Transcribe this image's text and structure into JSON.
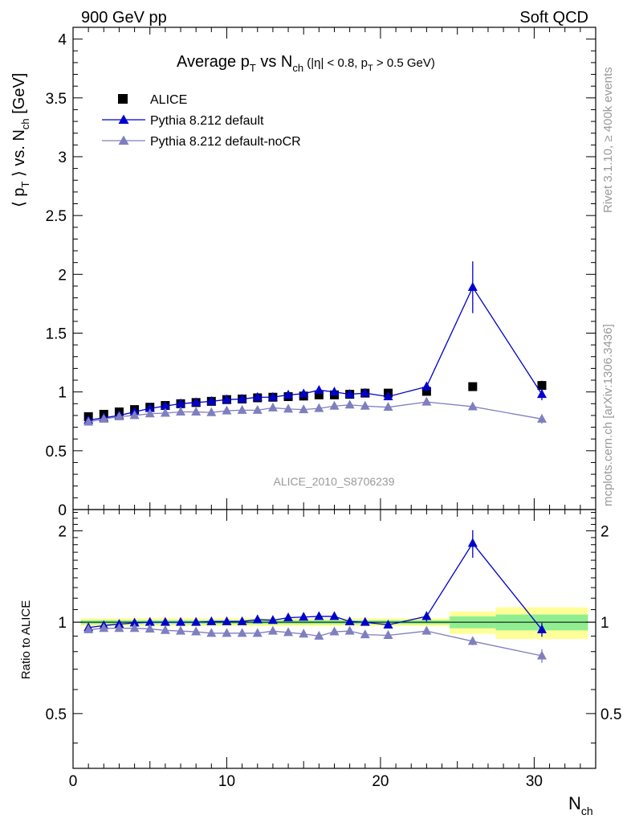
{
  "header": {
    "left": "900 GeV pp",
    "right": "Soft QCD"
  },
  "side_labels": {
    "rivet": "Rivet 3.1.10, ≥ 400k events",
    "mcplots": "mcplots.cern.ch [arXiv:1306.3436]"
  },
  "chart_data": [
    {
      "type": "scatter",
      "panel": "main",
      "title_parts": {
        "prefix": "Average p",
        "sub1": "T",
        "mid": " vs N",
        "sub2": "ch",
        "cut_a": " (|η| < 0.8, p",
        "cut_sub": "T",
        "cut_b": " > 0.5 GeV)"
      },
      "ylabel_parts": {
        "open": "⟨ p",
        "sub1": "T",
        "close": " ⟩ vs. N",
        "sub2": "ch",
        "unit": " [GeV]"
      },
      "xlim": [
        0,
        34
      ],
      "ylim": [
        0,
        4.1
      ],
      "yticks": [
        "0",
        "0.5",
        "1",
        "1.5",
        "2",
        "2.5",
        "3",
        "3.5",
        "4"
      ],
      "legend_position": "top-left",
      "watermark": "ALICE_2010_S8706239",
      "series": [
        {
          "name": "ALICE",
          "marker": "square",
          "color": "#000000",
          "x": [
            1,
            2,
            3,
            4,
            5,
            6,
            7,
            8,
            9,
            10,
            11,
            12,
            13,
            14,
            15,
            16,
            17,
            18,
            19,
            20.5,
            23,
            26,
            30.5
          ],
          "y": [
            0.79,
            0.81,
            0.83,
            0.85,
            0.87,
            0.885,
            0.9,
            0.91,
            0.92,
            0.935,
            0.94,
            0.95,
            0.955,
            0.96,
            0.965,
            0.975,
            0.975,
            0.98,
            0.99,
            0.99,
            1.005,
            1.045,
            1.055
          ],
          "err": [
            0.01,
            0.01,
            0.01,
            0.01,
            0.01,
            0.01,
            0.01,
            0.01,
            0.01,
            0.01,
            0.01,
            0.01,
            0.01,
            0.01,
            0.01,
            0.01,
            0.01,
            0.01,
            0.01,
            0.01,
            0.02,
            0.03,
            0.04
          ]
        },
        {
          "name": "Pythia 8.212 default",
          "marker": "triangle",
          "color": "#0000cc",
          "x": [
            1,
            2,
            3,
            4,
            5,
            6,
            7,
            8,
            9,
            10,
            11,
            12,
            13,
            14,
            15,
            16,
            17,
            18,
            19,
            20.5,
            23,
            26,
            30.5
          ],
          "y": [
            0.76,
            0.78,
            0.8,
            0.83,
            0.86,
            0.88,
            0.9,
            0.91,
            0.92,
            0.935,
            0.94,
            0.955,
            0.955,
            0.975,
            0.985,
            1.015,
            1.0,
            0.98,
            0.99,
            0.96,
            1.045,
            1.89,
            0.98
          ],
          "err": [
            0.01,
            0.01,
            0.01,
            0.01,
            0.01,
            0.01,
            0.01,
            0.01,
            0.01,
            0.01,
            0.01,
            0.01,
            0.01,
            0.01,
            0.015,
            0.015,
            0.015,
            0.015,
            0.015,
            0.02,
            0.04,
            0.22,
            0.05
          ]
        },
        {
          "name": "Pythia 8.212 default-noCR",
          "marker": "triangle",
          "color": "#7f7fbf",
          "x": [
            1,
            2,
            3,
            4,
            5,
            6,
            7,
            8,
            9,
            10,
            11,
            12,
            13,
            14,
            15,
            16,
            17,
            18,
            19,
            20.5,
            23,
            26,
            30.5
          ],
          "y": [
            0.745,
            0.77,
            0.79,
            0.8,
            0.815,
            0.82,
            0.83,
            0.83,
            0.825,
            0.84,
            0.845,
            0.845,
            0.865,
            0.855,
            0.85,
            0.86,
            0.88,
            0.89,
            0.88,
            0.87,
            0.915,
            0.875,
            0.77
          ],
          "err": [
            0.01,
            0.01,
            0.01,
            0.01,
            0.01,
            0.01,
            0.01,
            0.01,
            0.01,
            0.01,
            0.01,
            0.01,
            0.01,
            0.01,
            0.01,
            0.01,
            0.01,
            0.015,
            0.015,
            0.015,
            0.02,
            0.025,
            0.04
          ]
        }
      ]
    },
    {
      "type": "scatter",
      "panel": "ratio",
      "ylabel": "Ratio to ALICE",
      "xlabel_parts": {
        "main": "N",
        "sub": "ch"
      },
      "xlim": [
        0,
        34
      ],
      "ylim": [
        0.33,
        2.35
      ],
      "xticks": [
        "0",
        "10",
        "20",
        "30"
      ],
      "yticks": [
        "0.5",
        "1",
        "2"
      ],
      "bands": [
        {
          "x0": 0.5,
          "x1": 24.5,
          "inner": 0.015,
          "outer": 0.03
        },
        {
          "x0": 24.5,
          "x1": 27.5,
          "inner": 0.045,
          "outer": 0.085
        },
        {
          "x0": 27.5,
          "x1": 33.5,
          "inner": 0.06,
          "outer": 0.12
        }
      ],
      "band_colors": {
        "inner": "#90ee90",
        "outer": "#ffff99"
      },
      "series": [
        {
          "name": "Pythia 8.212 default",
          "marker": "triangle",
          "color": "#0000cc",
          "x": [
            1,
            2,
            3,
            4,
            5,
            6,
            7,
            8,
            9,
            10,
            11,
            12,
            13,
            14,
            15,
            16,
            17,
            18,
            19,
            20.5,
            23,
            26,
            30.5
          ],
          "y": [
            0.96,
            0.975,
            0.985,
            0.995,
            1.0,
            1.0,
            1.0,
            1.0,
            1.005,
            1.005,
            1.005,
            1.02,
            1.015,
            1.035,
            1.04,
            1.045,
            1.045,
            1.005,
            1.0,
            0.98,
            1.045,
            1.82,
            0.945
          ],
          "err": [
            0.01,
            0.01,
            0.01,
            0.01,
            0.01,
            0.01,
            0.01,
            0.01,
            0.01,
            0.01,
            0.01,
            0.01,
            0.01,
            0.01,
            0.015,
            0.015,
            0.015,
            0.015,
            0.015,
            0.02,
            0.04,
            0.19,
            0.05
          ]
        },
        {
          "name": "Pythia 8.212 default-noCR",
          "marker": "triangle",
          "color": "#7f7fbf",
          "x": [
            1,
            2,
            3,
            4,
            5,
            6,
            7,
            8,
            9,
            10,
            11,
            12,
            13,
            14,
            15,
            16,
            17,
            18,
            19,
            20.5,
            23,
            26,
            30.5
          ],
          "y": [
            0.945,
            0.955,
            0.955,
            0.955,
            0.95,
            0.94,
            0.935,
            0.93,
            0.92,
            0.92,
            0.92,
            0.92,
            0.935,
            0.925,
            0.915,
            0.9,
            0.93,
            0.935,
            0.91,
            0.905,
            0.935,
            0.865,
            0.775
          ],
          "err": [
            0.01,
            0.01,
            0.01,
            0.01,
            0.01,
            0.01,
            0.01,
            0.01,
            0.01,
            0.01,
            0.01,
            0.01,
            0.01,
            0.01,
            0.01,
            0.01,
            0.01,
            0.015,
            0.015,
            0.015,
            0.02,
            0.025,
            0.04
          ]
        }
      ]
    }
  ]
}
